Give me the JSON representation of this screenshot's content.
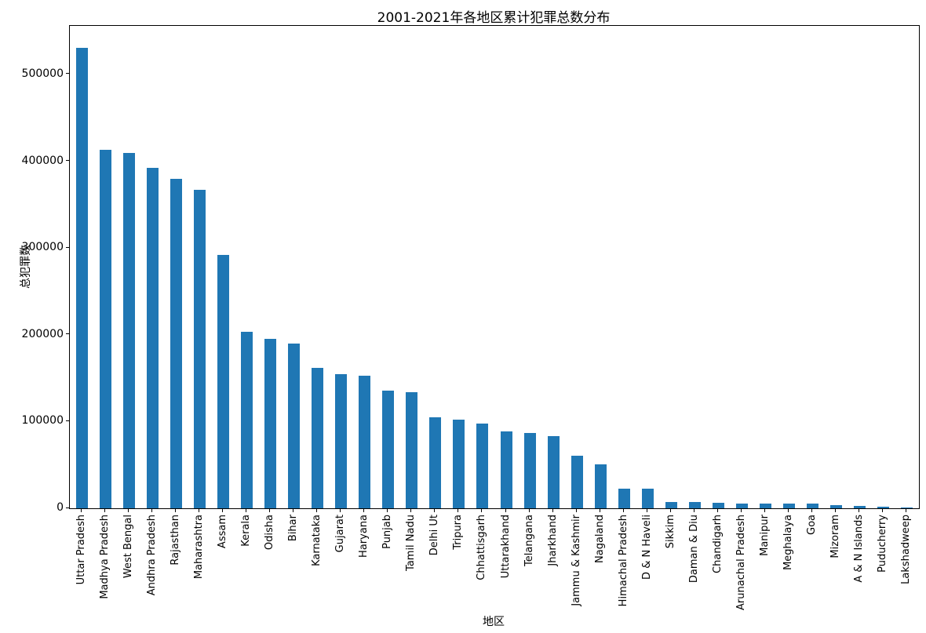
{
  "chart_data": {
    "type": "bar",
    "title": "2001-2021年各地区累计犯罪总数分布",
    "xlabel": "地区",
    "ylabel": "总犯罪数",
    "legend_position": "none",
    "grid": false,
    "bar_color": "#1f77b4",
    "ylim": [
      0,
      556000
    ],
    "yticks": [
      0,
      100000,
      200000,
      300000,
      400000,
      500000
    ],
    "ytick_labels": [
      "0",
      "100000",
      "200000",
      "300000",
      "400000",
      "500000"
    ],
    "categories": [
      "Uttar Pradesh",
      "Madhya Pradesh",
      "West Bengal",
      "Andhra Pradesh",
      "Rajasthan",
      "Maharashtra",
      "Assam",
      "Kerala",
      "Odisha",
      "Bihar",
      "Karnataka",
      "Gujarat",
      "Haryana",
      "Punjab",
      "Tamil Nadu",
      "Delhi Ut",
      "Tripura",
      "Chhattisgarh",
      "Uttarakhand",
      "Telangana",
      "Jharkhand",
      "Jammu & Kashmir",
      "Nagaland",
      "Himachal Pradesh",
      "D & N Haveli",
      "Sikkim",
      "Daman & Diu",
      "Chandigarh",
      "Arunachal Pradesh",
      "Manipur",
      "Meghalaya",
      "Goa",
      "Mizoram",
      "A & N Islands",
      "Puducherry",
      "Lakshadweep"
    ],
    "values": [
      531000,
      413000,
      410000,
      392000,
      380000,
      367000,
      292000,
      203500,
      195300,
      190000,
      161800,
      154600,
      152800,
      135600,
      133800,
      104900,
      102200,
      97700,
      88300,
      86900,
      83200,
      60600,
      50500,
      22900,
      22300,
      7200,
      7000,
      6200,
      5600,
      5400,
      5200,
      5000,
      3200,
      2300,
      2100,
      130
    ]
  }
}
